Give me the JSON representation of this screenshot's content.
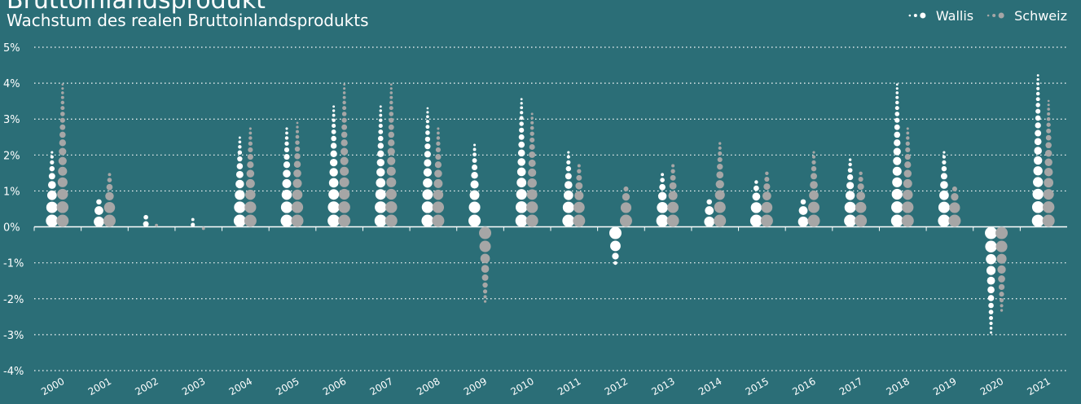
{
  "chart_data": {
    "type": "dot-column",
    "title": "Bruttoinlandsprodukt",
    "subtitle": "Wachstum des realen Bruttoinlandsprodukts",
    "categories": [
      "2000",
      "2001",
      "2002",
      "2003",
      "2004",
      "2005",
      "2006",
      "2007",
      "2008",
      "2009",
      "2010",
      "2011",
      "2012",
      "2013",
      "2014",
      "2015",
      "2016",
      "2017",
      "2018",
      "2019",
      "2020",
      "2021"
    ],
    "series": [
      {
        "name": "Wallis",
        "color": "#ffffff",
        "values": [
          2.1,
          0.8,
          0.35,
          0.2,
          2.5,
          2.8,
          3.4,
          3.4,
          3.3,
          2.3,
          3.6,
          2.1,
          -1.0,
          1.5,
          0.8,
          1.3,
          0.8,
          1.9,
          4.0,
          2.1,
          -3.0,
          4.3
        ]
      },
      {
        "name": "Schweiz",
        "color": "#a6a6a6",
        "values": [
          4.0,
          1.5,
          0.1,
          -0.1,
          2.8,
          2.9,
          4.0,
          4.0,
          2.8,
          -2.1,
          3.2,
          1.8,
          1.2,
          1.8,
          2.4,
          1.6,
          2.1,
          1.6,
          2.8,
          1.2,
          -2.4,
          3.5
        ]
      }
    ],
    "ylim": [
      -4,
      5
    ],
    "yticks": [
      {
        "value": -4,
        "label": "-4%"
      },
      {
        "value": -3,
        "label": "-3%"
      },
      {
        "value": -2,
        "label": "-2%"
      },
      {
        "value": -1,
        "label": "-1%"
      },
      {
        "value": 0,
        "label": "0%"
      },
      {
        "value": 1,
        "label": "1%"
      },
      {
        "value": 2,
        "label": "2%"
      },
      {
        "value": 3,
        "label": "3%"
      },
      {
        "value": 4,
        "label": "4%"
      },
      {
        "value": 5,
        "label": "5%"
      }
    ],
    "grid": true,
    "legend": "top-right"
  }
}
